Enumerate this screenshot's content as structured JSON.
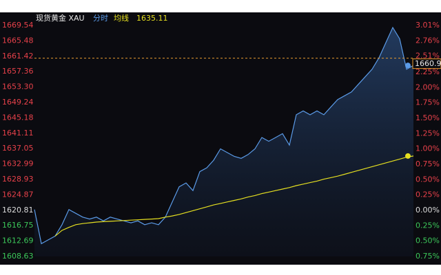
{
  "chart_data": {
    "type": "line",
    "title": "现货黄金 XAU",
    "series": [
      {
        "name": "分时",
        "color": "#5b9be8",
        "values": [
          1621,
          1612,
          1613,
          1614,
          1617,
          1621,
          1620,
          1619,
          1618.5,
          1619,
          1618,
          1619,
          1618.5,
          1618,
          1617.5,
          1618,
          1617,
          1617.5,
          1617,
          1619,
          1623,
          1627,
          1628,
          1626,
          1631,
          1632,
          1634,
          1637,
          1636,
          1635,
          1634.5,
          1635.5,
          1637,
          1640,
          1639,
          1640,
          1641,
          1638,
          1646,
          1647,
          1646,
          1647,
          1646,
          1648,
          1650,
          1651,
          1652,
          1654,
          1656,
          1658,
          1661,
          1665,
          1669,
          1666,
          1658,
          1659
        ]
      },
      {
        "name": "均线",
        "color": "#e6e020",
        "values": [
          null,
          null,
          null,
          1614,
          1615.5,
          1616.3,
          1617,
          1617.3,
          1617.5,
          1617.7,
          1617.8,
          1617.9,
          1618,
          1618.1,
          1618.2,
          1618.3,
          1618.4,
          1618.5,
          1618.6,
          1619,
          1619.3,
          1619.7,
          1620.2,
          1620.7,
          1621.2,
          1621.7,
          1622.2,
          1622.6,
          1623,
          1623.4,
          1623.8,
          1624.3,
          1624.7,
          1625.2,
          1625.6,
          1626,
          1626.4,
          1626.8,
          1627.3,
          1627.7,
          1628.1,
          1628.5,
          1629,
          1629.4,
          1629.8,
          1630.3,
          1630.8,
          1631.3,
          1631.8,
          1632.3,
          1632.8,
          1633.3,
          1633.8,
          1634.3,
          1634.8,
          1635.11
        ]
      }
    ],
    "ylim": [
      1608.63,
      1669.54
    ],
    "yticks": [
      1669.54,
      1665.48,
      1661.42,
      1657.36,
      {
        "value": 1653.3,
        "label": "1653.30"
      },
      1649.24,
      1645.18,
      1641.11,
      1637.05,
      1632.99,
      1628.93,
      1624.87,
      1620.81,
      1616.75,
      1612.69,
      1608.63
    ],
    "y2lim": [
      -0.75,
      3.01
    ],
    "y2ticks": [
      {
        "value": 3.01,
        "label": "3.01%"
      },
      {
        "value": 2.76,
        "label": "2.76%"
      },
      {
        "value": 2.51,
        "label": "2.51%"
      },
      {
        "value": 2.25,
        "label": "2.25%"
      },
      {
        "value": 2.0,
        "label": "2.00%"
      },
      {
        "value": 1.75,
        "label": "1.75%"
      },
      {
        "value": 1.5,
        "label": "1.50%"
      },
      {
        "value": 1.25,
        "label": "1.25%"
      },
      {
        "value": 1.0,
        "label": "1.00%"
      },
      {
        "value": 0.75,
        "label": "0.75%"
      },
      {
        "value": 0.5,
        "label": "0.50%"
      },
      {
        "value": 0.25,
        "label": "0.25%"
      },
      {
        "value": 0,
        "label": "0.00%"
      },
      {
        "value": -0.25,
        "label": "0.25%"
      },
      {
        "value": -0.5,
        "label": "0.50%"
      },
      {
        "value": -0.75,
        "label": "0.75%"
      }
    ],
    "current_price": 1660.9,
    "up_color": "#e8414a",
    "down_color": "#3cc85a",
    "flat_color": "#dddddd",
    "price_line_color": "#e89a30"
  }
}
